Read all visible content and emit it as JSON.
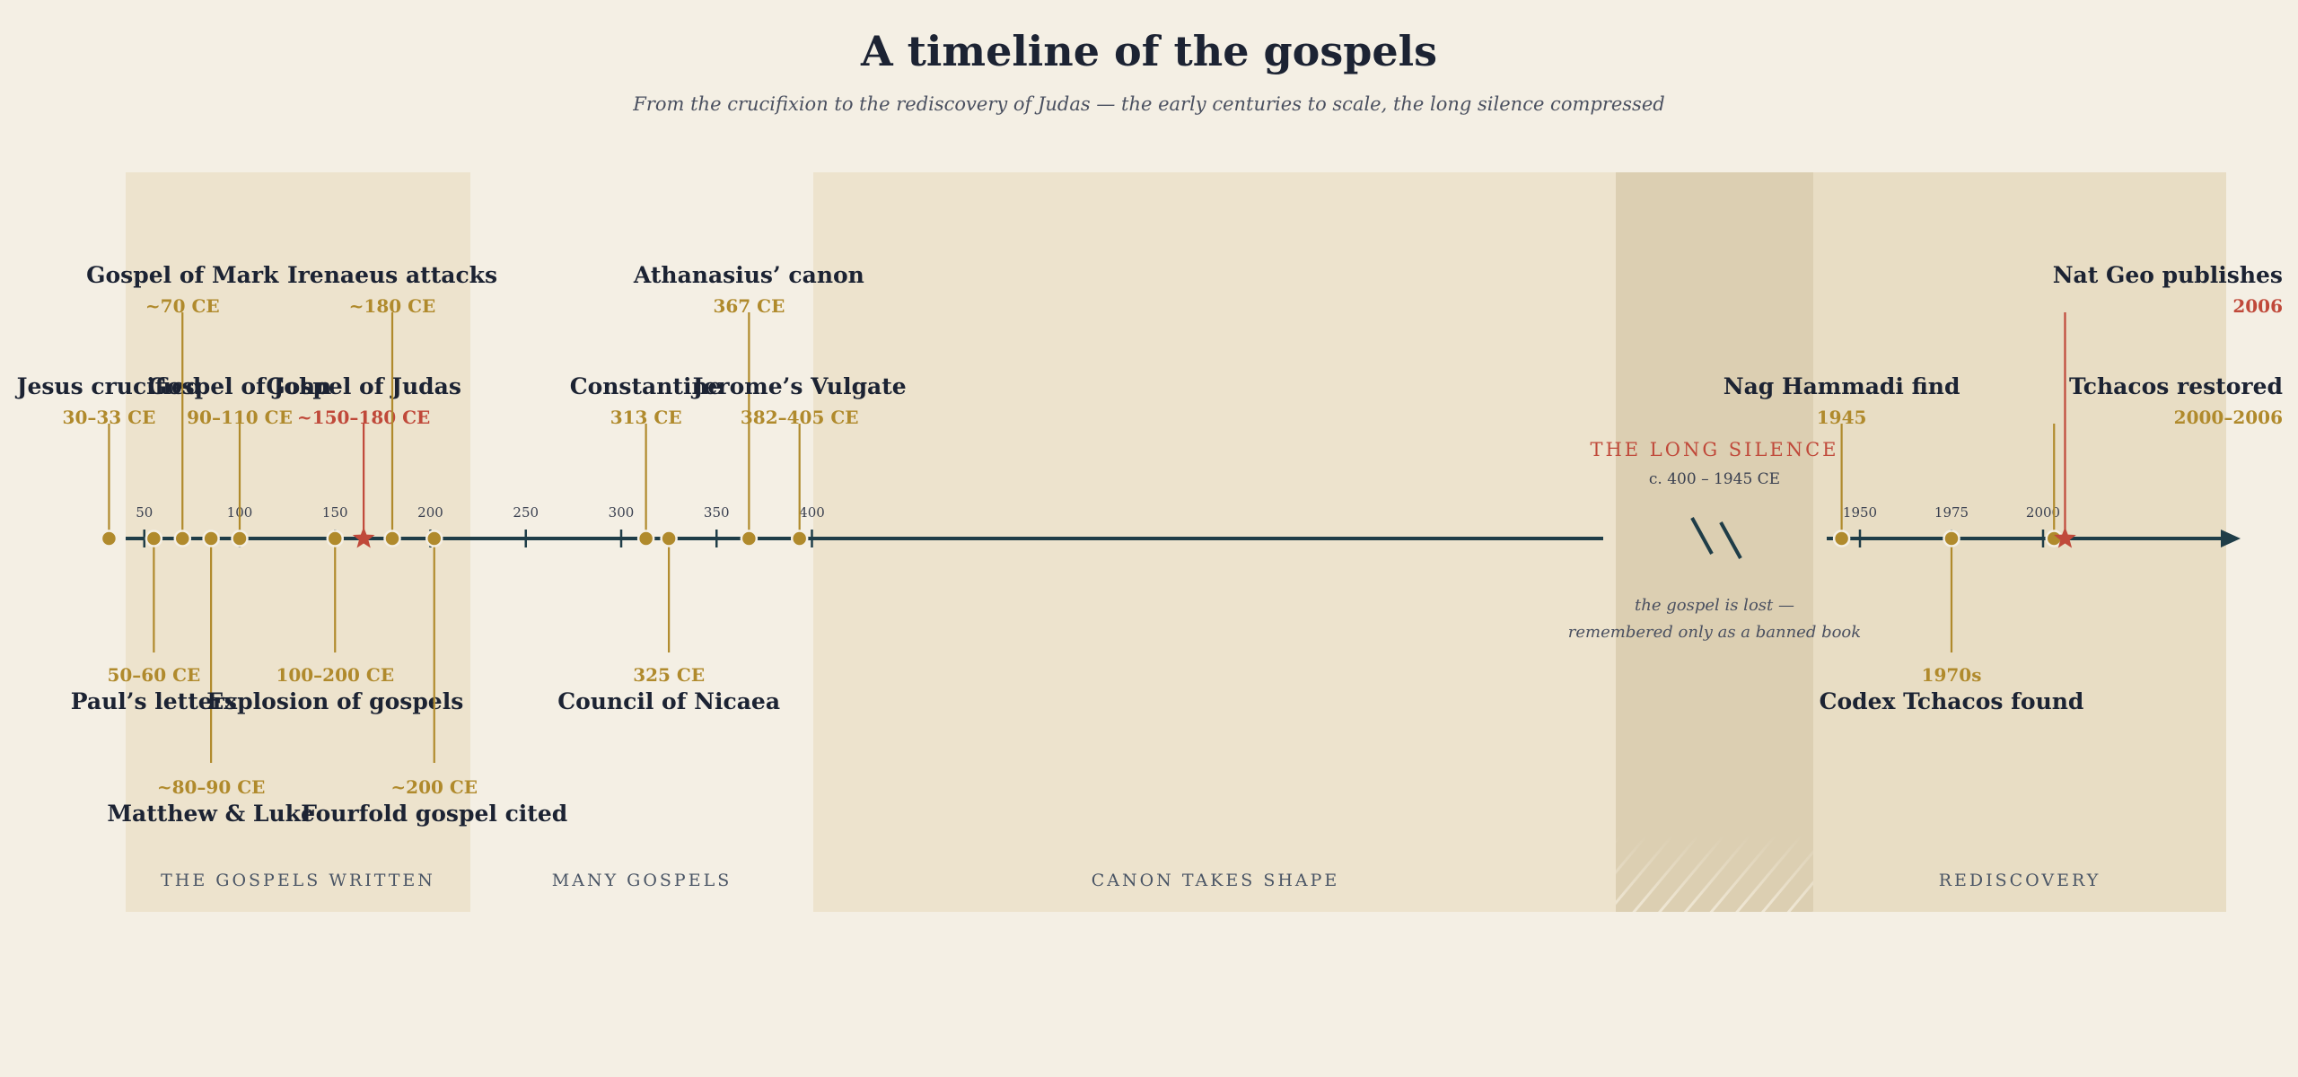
{
  "title": "A timeline of the gospels",
  "subtitle": "From the crucifixion to the rediscovery of Judas — the early centuries to scale, the long silence compressed",
  "colors": {
    "background": "#f4efe4",
    "era_light": "#ede3cd",
    "era_dark": "#e8ddc4",
    "silence_band": "#dccfb2",
    "axis": "#1f3d48",
    "gold": "#b08a2c",
    "red": "#c0493a",
    "ink": "#1c2333"
  },
  "chart_data": {
    "type": "timeline",
    "axis_ticks": [
      "50",
      "100",
      "150",
      "200",
      "250",
      "300",
      "350",
      "400",
      "1950",
      "1975",
      "2000"
    ],
    "eras": [
      {
        "label": "THE GOSPELS WRITTEN"
      },
      {
        "label": "MANY GOSPELS"
      },
      {
        "label": "CANON TAKES SHAPE"
      },
      {
        "label": "REDISCOVERY"
      }
    ],
    "silence": {
      "title": "THE LONG SILENCE",
      "range": "c. 400 – 1945 CE",
      "note_line1": "the gospel is lost —",
      "note_line2": "remembered only as a banned book"
    },
    "events": [
      {
        "label": "Jesus crucified",
        "date": "30–33 CE",
        "year": 31.5,
        "side": "above",
        "tier": 1,
        "marker": "dot"
      },
      {
        "label": "Paul’s letters",
        "date": "50–60 CE",
        "year": 55,
        "side": "below",
        "tier": 1,
        "marker": "dot"
      },
      {
        "label": "Gospel of Mark",
        "date": "~70 CE",
        "year": 70,
        "side": "above",
        "tier": 2,
        "marker": "dot"
      },
      {
        "label": "Matthew & Luke",
        "date": "~80–90 CE",
        "year": 85,
        "side": "below",
        "tier": 2,
        "marker": "dot"
      },
      {
        "label": "Gospel of John",
        "date": "90–110 CE",
        "year": 100,
        "side": "above",
        "tier": 1,
        "marker": "dot"
      },
      {
        "label": "Explosion of gospels",
        "date": "100–200 CE",
        "year": 150,
        "side": "below",
        "tier": 1,
        "marker": "dot"
      },
      {
        "label": "Gospel of Judas",
        "date": "~150–180 CE",
        "year": 165,
        "side": "above",
        "tier": 1,
        "marker": "star",
        "highlight": true
      },
      {
        "label": "Irenaeus attacks",
        "date": "~180 CE",
        "year": 180,
        "side": "above",
        "tier": 2,
        "marker": "dot"
      },
      {
        "label": "Fourfold gospel cited",
        "date": "~200 CE",
        "year": 202,
        "side": "below",
        "tier": 2,
        "marker": "dot"
      },
      {
        "label": "Constantine",
        "date": "313 CE",
        "year": 313,
        "side": "above",
        "tier": 1,
        "marker": "dot"
      },
      {
        "label": "Council of Nicaea",
        "date": "325 CE",
        "year": 325,
        "side": "below",
        "tier": 1,
        "marker": "dot"
      },
      {
        "label": "Athanasius’ canon",
        "date": "367 CE",
        "year": 367,
        "side": "above",
        "tier": 2,
        "marker": "dot"
      },
      {
        "label": "Jerome’s Vulgate",
        "date": "382–405 CE",
        "year": 393.5,
        "side": "above",
        "tier": 1,
        "marker": "dot"
      },
      {
        "label": "Nag Hammadi find",
        "date": "1945",
        "year": 1945,
        "side": "above",
        "tier": 1,
        "marker": "dot"
      },
      {
        "label": "Codex Tchacos found",
        "date": "1970s",
        "year": 1975,
        "side": "below",
        "tier": 1,
        "marker": "dot"
      },
      {
        "label": "Tchacos restored",
        "date": "2000–2006",
        "year": 2003,
        "side": "above",
        "tier": 1,
        "marker": "dot"
      },
      {
        "label": "Nat Geo publishes",
        "date": "2006",
        "year": 2006,
        "side": "above",
        "tier": 2,
        "marker": "star",
        "highlight": true
      }
    ]
  }
}
